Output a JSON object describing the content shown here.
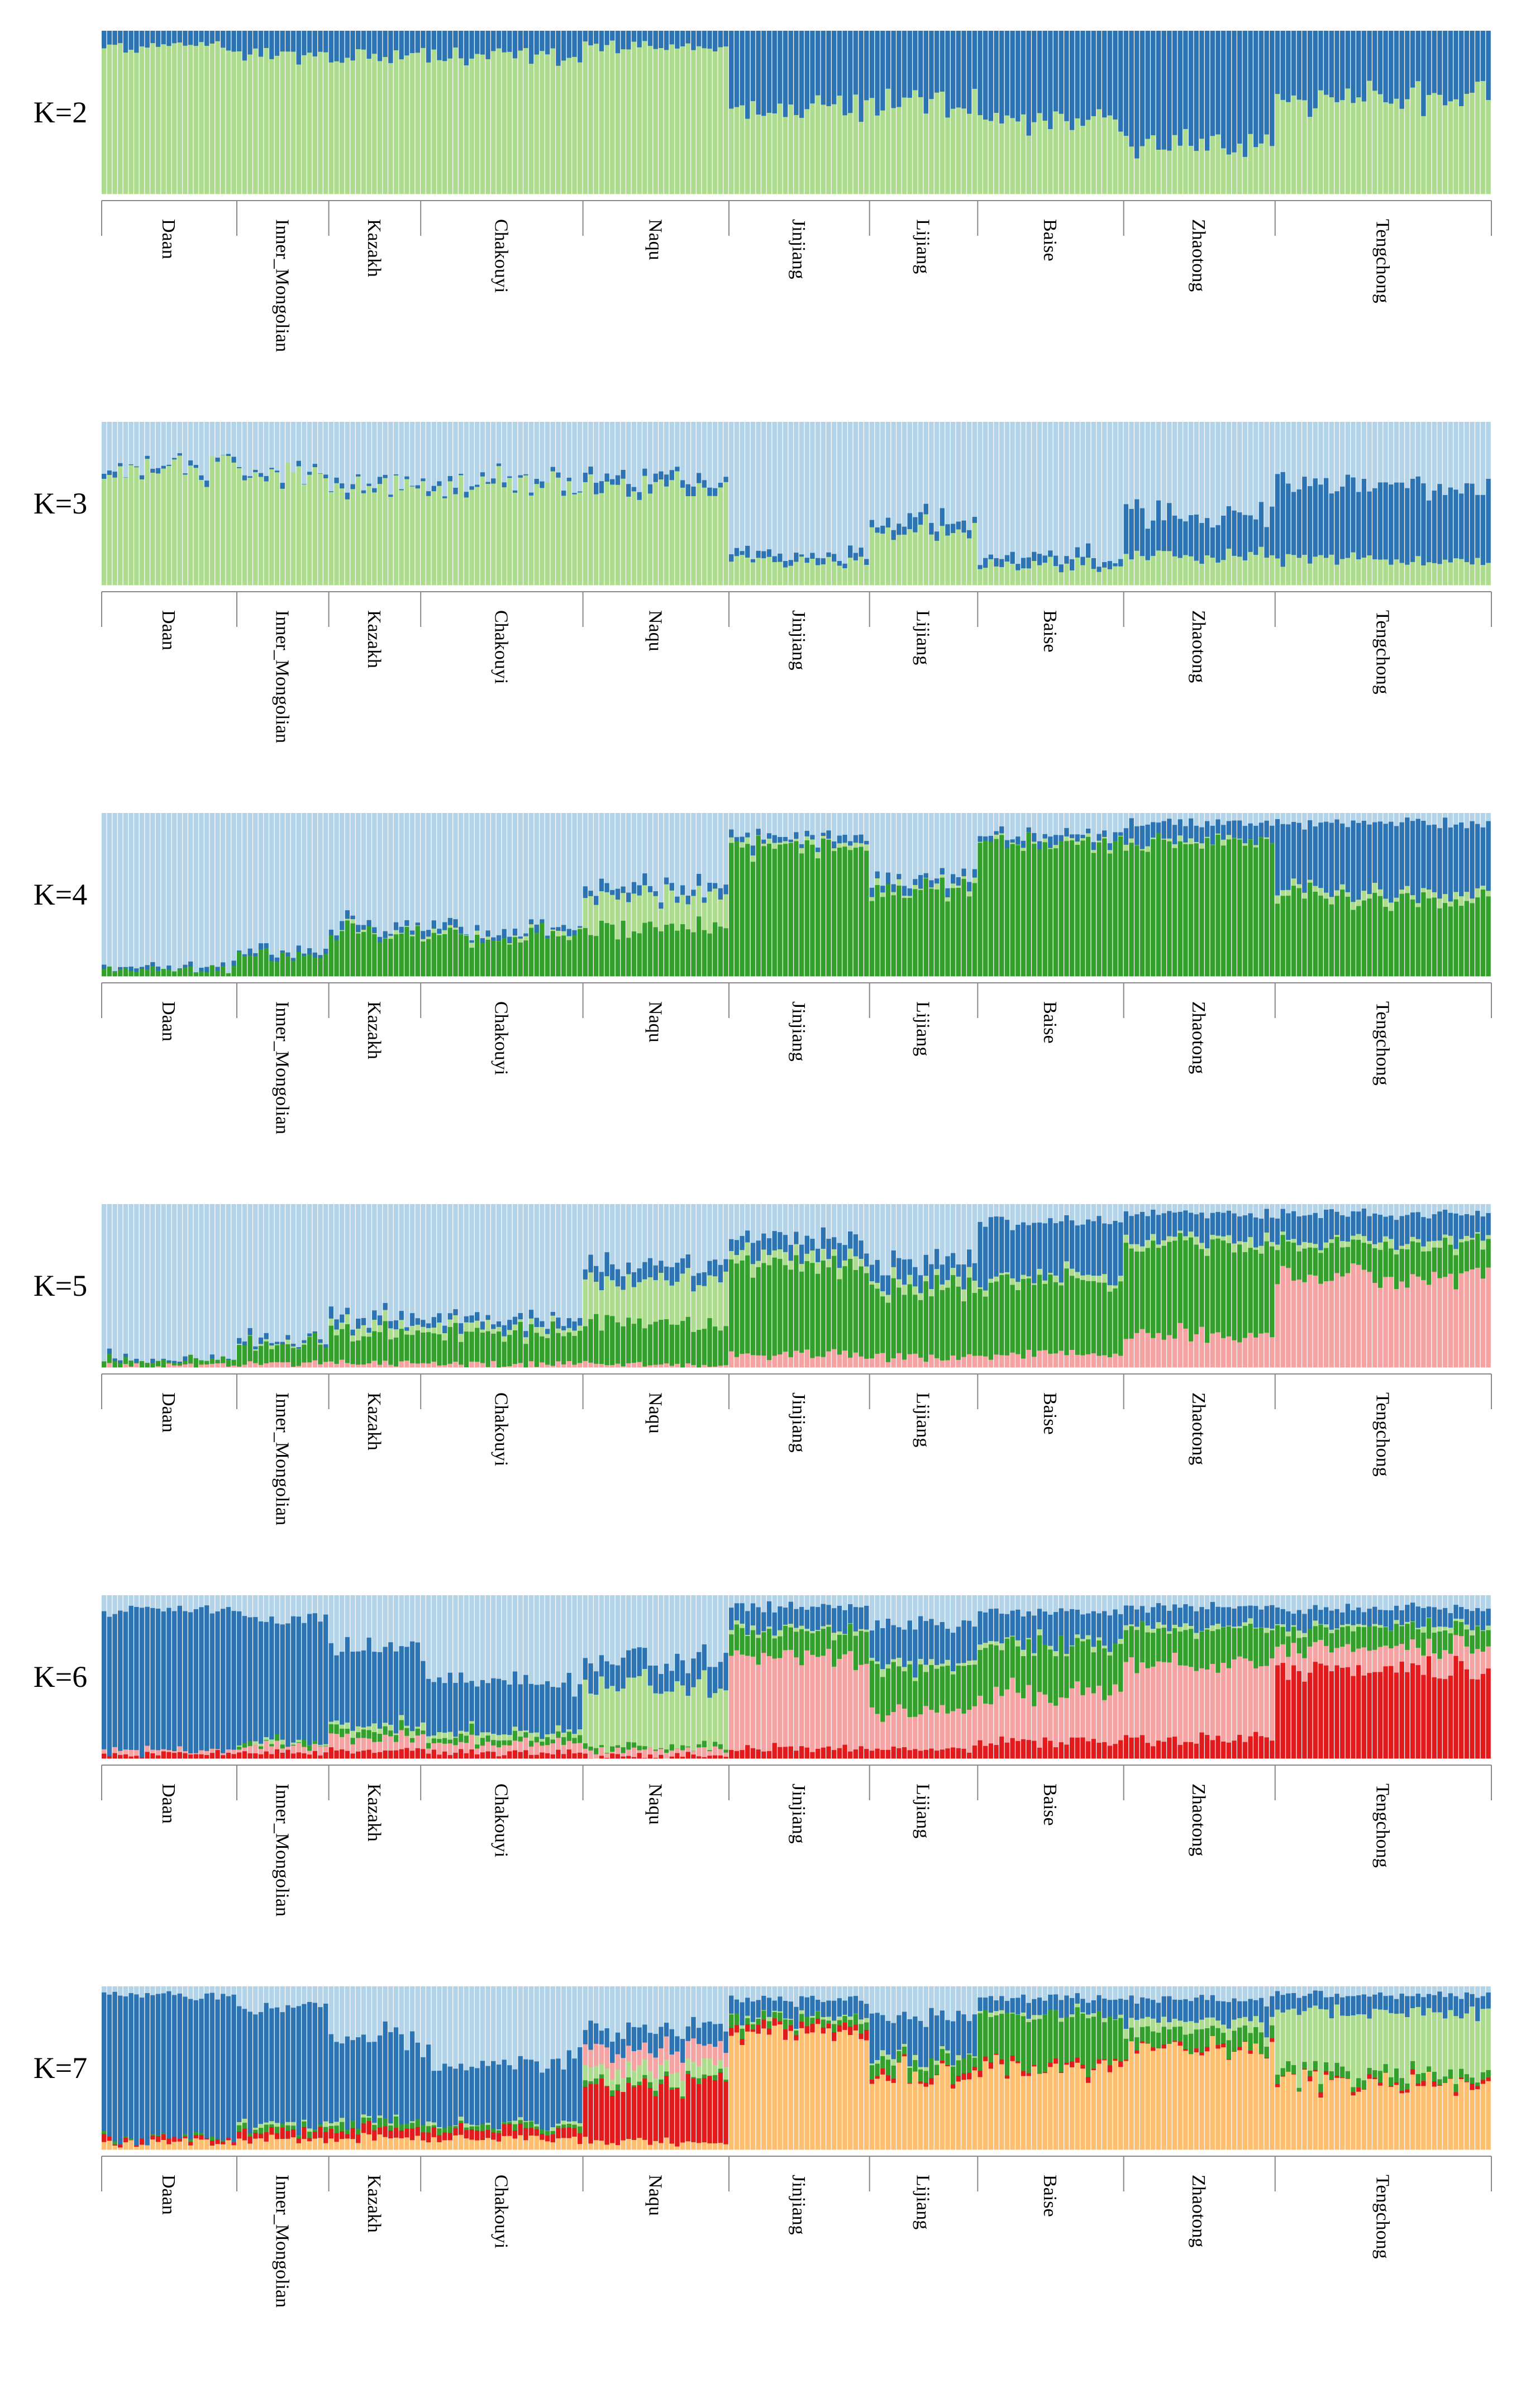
{
  "chart_data": {
    "type": "structure",
    "description_label_axis": "population",
    "populations": [
      "Daan",
      "Inner_Mongolian",
      "Kazakh",
      "Chakouyi",
      "Naqu",
      "Jinjiang",
      "Lijiang",
      "Baise",
      "Zhaotong",
      "Tengchong"
    ],
    "population_sizes": [
      25,
      17,
      17,
      30,
      27,
      26,
      20,
      27,
      28,
      40
    ],
    "colors": {
      "lightblue": "#b3d4e8",
      "blue": "#2b73b3",
      "lightgreen": "#addc8f",
      "green": "#33a02c",
      "pink": "#f4a2a2",
      "red": "#e31a1c",
      "orange": "#fdbe6f"
    },
    "panels": [
      {
        "label": "K=2",
        "components": [
          "lightgreen",
          "blue"
        ],
        "population_means": [
          [
            0.91,
            0.09
          ],
          [
            0.86,
            0.14
          ],
          [
            0.85,
            0.15
          ],
          [
            0.85,
            0.15
          ],
          [
            0.9,
            0.1
          ],
          [
            0.53,
            0.47
          ],
          [
            0.57,
            0.43
          ],
          [
            0.46,
            0.54
          ],
          [
            0.3,
            0.7
          ],
          [
            0.6,
            0.4
          ]
        ]
      },
      {
        "label": "K=3",
        "components": [
          "lightgreen",
          "blue",
          "lightblue"
        ],
        "population_means": [
          [
            0.72,
            0.02,
            0.26
          ],
          [
            0.67,
            0.02,
            0.31
          ],
          [
            0.6,
            0.02,
            0.38
          ],
          [
            0.62,
            0.02,
            0.36
          ],
          [
            0.63,
            0.05,
            0.32
          ],
          [
            0.14,
            0.04,
            0.82
          ],
          [
            0.35,
            0.06,
            0.59
          ],
          [
            0.12,
            0.05,
            0.83
          ],
          [
            0.18,
            0.25,
            0.57
          ],
          [
            0.16,
            0.45,
            0.39
          ]
        ]
      },
      {
        "label": "K=4",
        "components": [
          "green",
          "lightgreen",
          "blue",
          "lightblue"
        ],
        "population_means": [
          [
            0.04,
            0.0,
            0.01,
            0.95
          ],
          [
            0.12,
            0.0,
            0.02,
            0.86
          ],
          [
            0.28,
            0.01,
            0.03,
            0.68
          ],
          [
            0.24,
            0.01,
            0.03,
            0.72
          ],
          [
            0.3,
            0.2,
            0.05,
            0.45
          ],
          [
            0.8,
            0.02,
            0.04,
            0.14
          ],
          [
            0.54,
            0.02,
            0.05,
            0.39
          ],
          [
            0.82,
            0.01,
            0.04,
            0.13
          ],
          [
            0.82,
            0.02,
            0.1,
            0.06
          ],
          [
            0.48,
            0.04,
            0.42,
            0.06
          ]
        ]
      },
      {
        "label": "K=5",
        "components": [
          "pink",
          "green",
          "lightgreen",
          "blue",
          "lightblue"
        ],
        "population_means": [
          [
            0.01,
            0.03,
            0.0,
            0.01,
            0.95
          ],
          [
            0.02,
            0.12,
            0.01,
            0.02,
            0.83
          ],
          [
            0.03,
            0.2,
            0.05,
            0.05,
            0.67
          ],
          [
            0.02,
            0.18,
            0.04,
            0.04,
            0.72
          ],
          [
            0.02,
            0.25,
            0.25,
            0.1,
            0.38
          ],
          [
            0.08,
            0.55,
            0.06,
            0.1,
            0.21
          ],
          [
            0.06,
            0.42,
            0.05,
            0.12,
            0.35
          ],
          [
            0.08,
            0.45,
            0.03,
            0.34,
            0.1
          ],
          [
            0.2,
            0.55,
            0.04,
            0.15,
            0.06
          ],
          [
            0.55,
            0.2,
            0.03,
            0.16,
            0.06
          ]
        ]
      },
      {
        "label": "K=6",
        "components": [
          "red",
          "pink",
          "green",
          "lightgreen",
          "blue",
          "lightblue"
        ],
        "population_means": [
          [
            0.03,
            0.02,
            0.0,
            0.0,
            0.87,
            0.08
          ],
          [
            0.04,
            0.04,
            0.02,
            0.01,
            0.75,
            0.14
          ],
          [
            0.05,
            0.08,
            0.05,
            0.03,
            0.47,
            0.32
          ],
          [
            0.04,
            0.06,
            0.04,
            0.03,
            0.3,
            0.53
          ],
          [
            0.02,
            0.04,
            0.02,
            0.35,
            0.17,
            0.4
          ],
          [
            0.06,
            0.55,
            0.16,
            0.02,
            0.14,
            0.07
          ],
          [
            0.06,
            0.24,
            0.25,
            0.03,
            0.24,
            0.18
          ],
          [
            0.1,
            0.3,
            0.3,
            0.02,
            0.18,
            0.1
          ],
          [
            0.12,
            0.45,
            0.22,
            0.02,
            0.12,
            0.07
          ],
          [
            0.55,
            0.13,
            0.12,
            0.02,
            0.1,
            0.08
          ]
        ]
      },
      {
        "label": "K=7",
        "components": [
          "orange",
          "red",
          "green",
          "lightgreen",
          "pink",
          "blue",
          "lightblue"
        ],
        "population_means": [
          [
            0.04,
            0.02,
            0.01,
            0.0,
            0.0,
            0.88,
            0.05
          ],
          [
            0.06,
            0.05,
            0.03,
            0.01,
            0.0,
            0.72,
            0.13
          ],
          [
            0.07,
            0.06,
            0.04,
            0.01,
            0.0,
            0.52,
            0.3
          ],
          [
            0.07,
            0.05,
            0.03,
            0.01,
            0.0,
            0.38,
            0.46
          ],
          [
            0.05,
            0.35,
            0.02,
            0.08,
            0.12,
            0.12,
            0.26
          ],
          [
            0.72,
            0.04,
            0.05,
            0.01,
            0.0,
            0.1,
            0.08
          ],
          [
            0.45,
            0.02,
            0.08,
            0.02,
            0.0,
            0.25,
            0.18
          ],
          [
            0.5,
            0.02,
            0.3,
            0.01,
            0.0,
            0.1,
            0.07
          ],
          [
            0.62,
            0.01,
            0.1,
            0.06,
            0.0,
            0.13,
            0.08
          ],
          [
            0.4,
            0.02,
            0.05,
            0.38,
            0.0,
            0.1,
            0.05
          ]
        ]
      }
    ]
  }
}
